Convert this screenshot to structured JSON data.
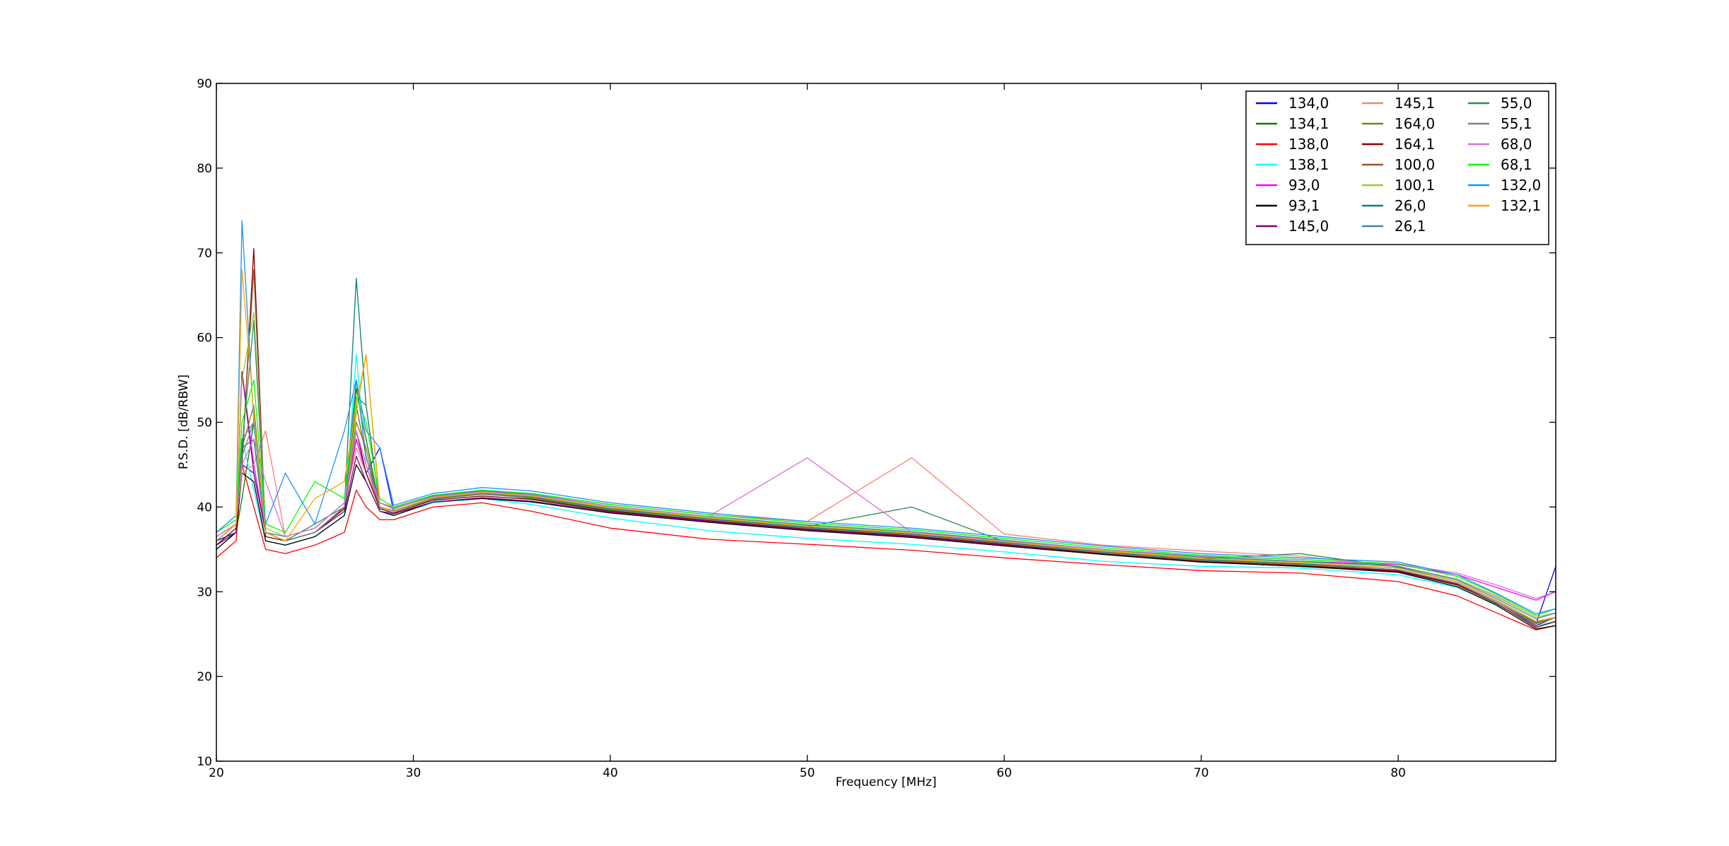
{
  "chart_data": {
    "type": "line",
    "x_label": "Frequency [MHz]",
    "y_label": "P.S.D. [dB/RBW]",
    "xlim": [
      20,
      88
    ],
    "ylim": [
      10,
      90
    ],
    "xticks": [
      20,
      30,
      40,
      50,
      60,
      70,
      80
    ],
    "yticks": [
      10,
      20,
      30,
      40,
      50,
      60,
      70,
      80,
      90
    ],
    "legend": "upper right",
    "legend_columns": 3,
    "x": [
      20,
      21,
      21.3,
      21.9,
      22.5,
      23.5,
      25,
      26.5,
      27.1,
      27.6,
      28.3,
      29,
      31,
      33.5,
      36,
      40,
      45,
      50,
      55.3,
      60,
      65,
      70,
      75,
      80,
      83,
      85,
      87,
      88
    ],
    "series": [
      {
        "name": "134,0",
        "color": "#0000ff",
        "values": [
          36,
          37,
          45,
          44,
          37,
          36,
          37,
          40,
          48,
          44,
          47,
          39.5,
          41,
          42,
          41.3,
          39.8,
          38.6,
          37.6,
          36.8,
          35.8,
          34.6,
          33.7,
          33.2,
          32.6,
          31,
          28.8,
          26.2,
          33
        ]
      },
      {
        "name": "134,1",
        "color": "#008000",
        "values": [
          35.5,
          37,
          41,
          50,
          37,
          36,
          37,
          40,
          54,
          48,
          40,
          39.5,
          40.9,
          41.6,
          41,
          39.6,
          38.4,
          37.4,
          36.6,
          35.6,
          34.4,
          33.5,
          33,
          32.4,
          30.8,
          28.6,
          25.8,
          26.5
        ]
      },
      {
        "name": "138,0",
        "color": "#ff0000",
        "values": [
          34,
          36,
          45,
          40,
          35,
          34.5,
          35.5,
          37,
          42,
          40,
          38.5,
          38.5,
          40,
          40.5,
          39.5,
          37.5,
          36.2,
          35.6,
          34.9,
          34,
          33.2,
          32.5,
          32.2,
          31.2,
          29.5,
          27.5,
          25.5,
          26
        ]
      },
      {
        "name": "138,1",
        "color": "#00ffff",
        "values": [
          35,
          37,
          48,
          42,
          36,
          35.5,
          36.5,
          39,
          58,
          45,
          40,
          39,
          40.5,
          41,
          40.3,
          38.7,
          37.2,
          36.3,
          35.6,
          34.7,
          33.6,
          33,
          32.8,
          32,
          30.5,
          28.5,
          26,
          26.5
        ]
      },
      {
        "name": "93,0",
        "color": "#ff00ff",
        "values": [
          36,
          38,
          56,
          45,
          37,
          36,
          37,
          40,
          48,
          44,
          40,
          39.5,
          41,
          41.7,
          41.2,
          39.8,
          38.7,
          37.8,
          37,
          36,
          35,
          34,
          33.6,
          33.2,
          32,
          30.5,
          29,
          30
        ]
      },
      {
        "name": "93,1",
        "color": "#000000",
        "values": [
          35,
          37,
          44,
          43,
          36,
          35.5,
          36.5,
          39,
          45,
          43,
          39.5,
          39,
          40.6,
          41,
          40.6,
          39.3,
          38.2,
          37.2,
          36.4,
          35.4,
          34.4,
          33.5,
          33,
          32.3,
          30.6,
          28.4,
          25.6,
          26
        ]
      },
      {
        "name": "145,0",
        "color": "#800080",
        "values": [
          35.5,
          37,
          56,
          44,
          37,
          36,
          37,
          39.5,
          46,
          43,
          39.5,
          39.2,
          40.6,
          41.1,
          40.7,
          39.4,
          38.3,
          37.3,
          36.5,
          35.5,
          34.5,
          33.6,
          33.1,
          32.5,
          30.9,
          28.8,
          26,
          27
        ]
      },
      {
        "name": "145,1",
        "color": "#fa8072",
        "values": [
          36.5,
          38,
          44,
          45,
          49,
          36.5,
          37.5,
          40.5,
          47,
          44,
          40.5,
          40,
          41.3,
          41.9,
          41.6,
          40.3,
          39.1,
          38.3,
          45.8,
          36.8,
          35.5,
          34.8,
          34.2,
          33,
          31.5,
          29.5,
          27,
          27.5
        ]
      },
      {
        "name": "164,0",
        "color": "#808000",
        "values": [
          36,
          38,
          47,
          52,
          37,
          36,
          37,
          40,
          50,
          47,
          40,
          39.5,
          41,
          41.6,
          41.2,
          39.8,
          38.6,
          37.6,
          36.8,
          35.8,
          34.6,
          33.8,
          33.3,
          32.6,
          31,
          28.8,
          26.3,
          27
        ]
      },
      {
        "name": "164,1",
        "color": "#800000",
        "values": [
          35.5,
          37.5,
          45,
          70.5,
          36.5,
          36,
          37,
          39.8,
          49,
          44,
          39.8,
          39.3,
          40.8,
          41.3,
          40.9,
          39.5,
          38.4,
          37.4,
          36.6,
          35.6,
          34.5,
          33.6,
          33.1,
          32.4,
          30.8,
          28.6,
          25.8,
          26.5
        ]
      },
      {
        "name": "100,0",
        "color": "#a0522d",
        "values": [
          36,
          38,
          46,
          68,
          37,
          36,
          37,
          40,
          52,
          46,
          40,
          39.6,
          41,
          41.6,
          41.2,
          39.8,
          38.6,
          37.6,
          36.7,
          35.7,
          34.6,
          33.7,
          33.2,
          32.6,
          31,
          28.8,
          26.2,
          27
        ]
      },
      {
        "name": "100,1",
        "color": "#9acd32",
        "values": [
          36.5,
          38,
          55,
          63,
          37.5,
          36.5,
          37.5,
          40.5,
          51,
          58,
          40.5,
          39.8,
          41.2,
          41.8,
          41.4,
          40,
          38.8,
          37.8,
          37,
          36,
          34.9,
          34,
          33.5,
          33,
          31.5,
          29.4,
          27,
          27.5
        ]
      },
      {
        "name": "26,0",
        "color": "#008080",
        "values": [
          36,
          38,
          47,
          48,
          37,
          36,
          37,
          40,
          67,
          52,
          40,
          39.6,
          41,
          41.6,
          41.2,
          39.8,
          38.6,
          37.6,
          36.8,
          35.8,
          34.7,
          33.8,
          33.3,
          32.8,
          31.2,
          29,
          26.5,
          27
        ]
      },
      {
        "name": "26,1",
        "color": "#4682b4",
        "values": [
          36.5,
          38,
          48,
          50,
          37,
          36.5,
          37.5,
          40.5,
          55,
          46,
          40.5,
          39.8,
          41.3,
          41.9,
          41.5,
          40.1,
          38.9,
          37.9,
          37.1,
          36.1,
          35,
          34.1,
          33.6,
          33,
          31.4,
          29.2,
          26.8,
          27.5
        ]
      },
      {
        "name": "55,0",
        "color": "#2e8b57",
        "values": [
          36,
          38,
          47,
          62,
          37,
          36,
          38,
          40,
          53,
          52,
          40,
          39.6,
          41,
          41.6,
          41.2,
          39.9,
          38.7,
          37.7,
          40,
          35.9,
          34.8,
          33.9,
          34.5,
          32.9,
          31.2,
          29,
          26.4,
          27
        ]
      },
      {
        "name": "55,1",
        "color": "#808080",
        "values": [
          36,
          38,
          46,
          50,
          37,
          36,
          37,
          40,
          49,
          45,
          40,
          39.5,
          40.9,
          41.5,
          41.1,
          39.7,
          38.5,
          37.5,
          36.7,
          35.7,
          34.6,
          33.7,
          33.2,
          32.6,
          31,
          28.8,
          26.2,
          27
        ]
      },
      {
        "name": "68,0",
        "color": "#da70d6",
        "values": [
          36.5,
          38,
          45,
          48,
          43,
          36.5,
          37.5,
          40.5,
          49,
          45,
          40.5,
          39.9,
          41.2,
          41.8,
          41.4,
          40.1,
          38.9,
          45.8,
          37,
          36,
          35,
          34.2,
          33.8,
          33.3,
          32.2,
          30.8,
          29.2,
          30
        ]
      },
      {
        "name": "68,1",
        "color": "#00ff00",
        "values": [
          37,
          38.5,
          50,
          55,
          38,
          37,
          43,
          41,
          53,
          50,
          41,
          40,
          41.4,
          42,
          41.6,
          40.3,
          39.1,
          38.1,
          37.3,
          36.3,
          35.2,
          34.3,
          33.8,
          33.3,
          31.8,
          29.7,
          27.2,
          28
        ]
      },
      {
        "name": "132,0",
        "color": "#1e90ff",
        "values": [
          37,
          39,
          73.8,
          50,
          38,
          44,
          38,
          49,
          55,
          49,
          47,
          40.2,
          41.6,
          42.3,
          41.9,
          40.5,
          39.3,
          38.3,
          37.5,
          36.5,
          35.4,
          34.5,
          34,
          33.5,
          32,
          29.8,
          27.4,
          28
        ]
      },
      {
        "name": "132,1",
        "color": "#ffa500",
        "values": [
          36,
          38,
          68,
          51,
          37,
          36,
          41,
          43,
          52,
          58,
          40,
          39.6,
          41.1,
          41.7,
          41.3,
          39.9,
          38.7,
          37.7,
          36.9,
          35.9,
          34.8,
          33.9,
          33.4,
          32.8,
          31.2,
          29,
          26.5,
          27
        ]
      }
    ]
  }
}
